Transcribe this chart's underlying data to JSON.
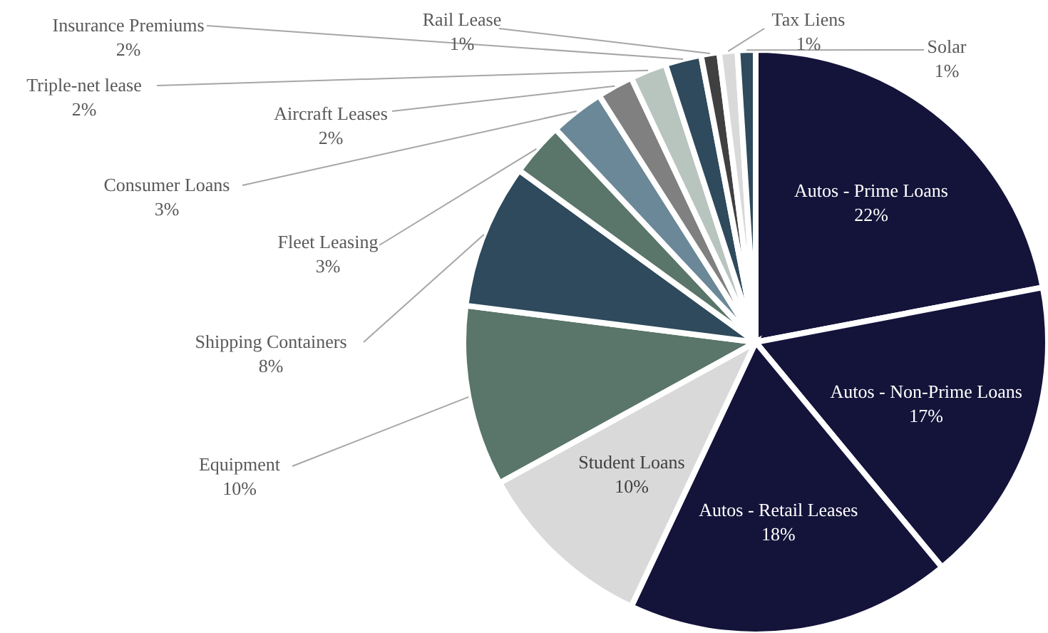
{
  "chart_data": {
    "type": "pie",
    "categories": [
      "Autos - Prime Loans",
      "Autos - Non-Prime Loans",
      "Autos - Retail Leases",
      "Student Loans",
      "Equipment",
      "Shipping Containers",
      "Fleet Leasing",
      "Consumer Loans",
      "Aircraft Leases",
      "Triple-net lease",
      "Insurance Premiums",
      "Rail Lease",
      "Tax Liens",
      "Solar"
    ],
    "values": [
      22,
      17,
      18,
      10,
      10,
      8,
      3,
      3,
      2,
      2,
      2,
      1,
      1,
      1
    ],
    "colors": [
      "#14133a",
      "#14133a",
      "#14133a",
      "#d9d9d9",
      "#5a7569",
      "#2e4a5c",
      "#5a7569",
      "#6b8898",
      "#808080",
      "#b8c4be",
      "#2e4a5c",
      "#404040",
      "#d9d9d9",
      "#2e4a5c"
    ],
    "value_labels": [
      "22%",
      "17%",
      "18%",
      "10%",
      "10%",
      "8%",
      "3%",
      "3%",
      "2%",
      "2%",
      "2%",
      "1%",
      "1%",
      "1%"
    ]
  }
}
